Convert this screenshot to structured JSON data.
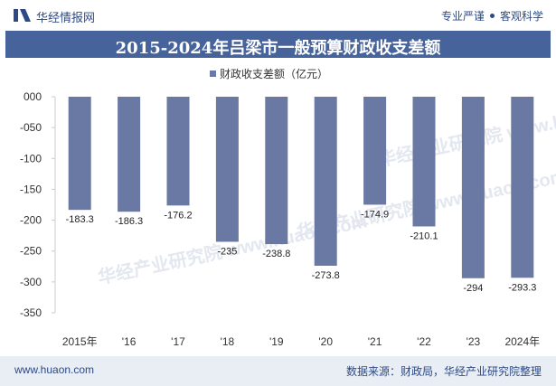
{
  "header": {
    "brand": "华经情报网",
    "tagline_left": "专业严谨",
    "tagline_right": "客观科学"
  },
  "watermark": "华经产业研究院 www.huaon.com",
  "footer": {
    "site": "www.huaon.com",
    "source": "数据来源：财政局，华经产业研究院整理"
  },
  "colors": {
    "bar": "#6a79a3",
    "title_bg": "#47639c",
    "brand": "#2c4a86"
  },
  "chart_data": {
    "type": "bar",
    "title": "2015-2024年吕梁市一般预算财政收支差额",
    "legend": "财政收支差额（亿元）",
    "legend_position": "top-center",
    "categories": [
      "2015年",
      "'16",
      "'17",
      "'18",
      "'19",
      "'20",
      "'21",
      "'22",
      "'23",
      "2024年"
    ],
    "series": [
      {
        "name": "财政收支差额（亿元）",
        "values": [
          -183.3,
          -186.3,
          -176.2,
          -235,
          -238.8,
          -273.8,
          -174.9,
          -210.1,
          -294,
          -293.3
        ]
      }
    ],
    "ylim": [
      -350,
      0
    ],
    "yticks": [
      0,
      -50,
      -100,
      -150,
      -200,
      -250,
      -300,
      -350
    ],
    "ytick_labels": [
      "000",
      "-050",
      "-100",
      "-150",
      "-200",
      "-250",
      "-300",
      "-350"
    ],
    "grid": false
  }
}
